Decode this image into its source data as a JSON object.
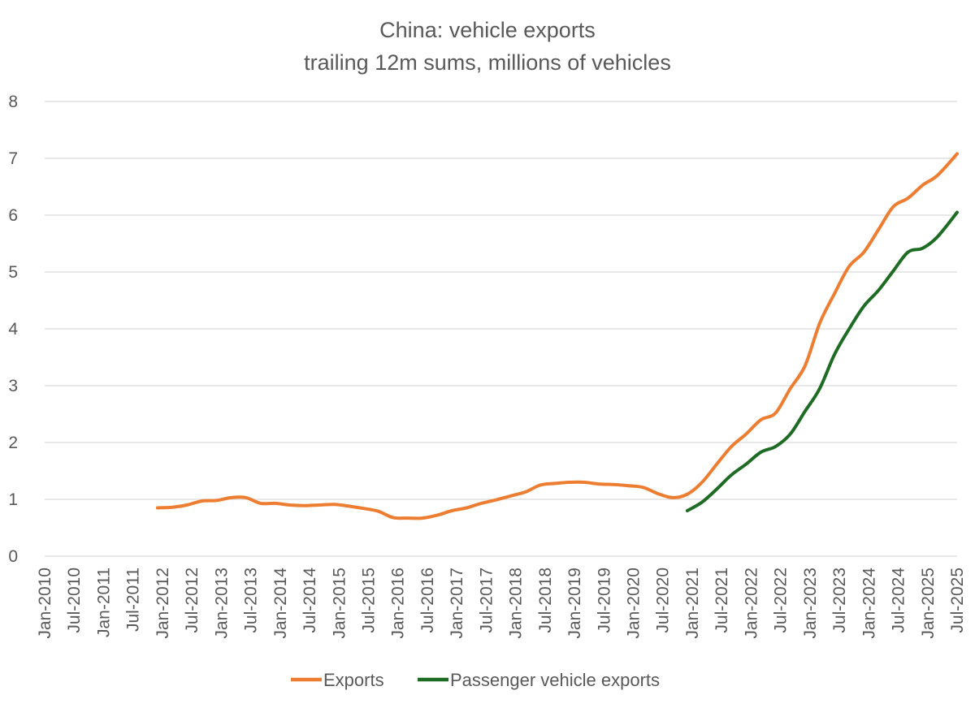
{
  "chart_data": {
    "type": "line",
    "title": "China: vehicle exports",
    "subtitle": "trailing 12m sums, millions of vehicles",
    "xlabel": "",
    "ylabel": "",
    "ylim": [
      0,
      8
    ],
    "yticks": [
      "0",
      "1",
      "2",
      "3",
      "4",
      "5",
      "6",
      "7",
      "8"
    ],
    "grid": "horizontal",
    "legend_position": "bottom",
    "xticks": [
      "Jan-2010",
      "Jul-2010",
      "Jan-2011",
      "Jul-2011",
      "Jan-2012",
      "Jul-2012",
      "Jan-2013",
      "Jul-2013",
      "Jan-2014",
      "Jul-2014",
      "Jan-2015",
      "Jul-2015",
      "Jan-2016",
      "Jul-2016",
      "Jan-2017",
      "Jul-2017",
      "Jan-2018",
      "Jul-2018",
      "Jan-2019",
      "Jul-2019",
      "Jan-2020",
      "Jul-2020",
      "Jan-2021",
      "Jul-2021",
      "Jan-2022",
      "Jul-2022",
      "Jan-2023",
      "Jul-2023",
      "Jan-2024",
      "Jul-2024",
      "Jan-2025",
      "Jul-2025"
    ],
    "series": [
      {
        "name": "Exports",
        "color": "#ED7D31",
        "points": [
          [
            "Dec-2011",
            0.85
          ],
          [
            "Mar-2012",
            0.86
          ],
          [
            "Jun-2012",
            0.9
          ],
          [
            "Sep-2012",
            0.97
          ],
          [
            "Dec-2012",
            0.98
          ],
          [
            "Mar-2013",
            1.03
          ],
          [
            "Jun-2013",
            1.03
          ],
          [
            "Sep-2013",
            0.93
          ],
          [
            "Dec-2013",
            0.93
          ],
          [
            "Mar-2014",
            0.9
          ],
          [
            "Jun-2014",
            0.89
          ],
          [
            "Sep-2014",
            0.9
          ],
          [
            "Dec-2014",
            0.91
          ],
          [
            "Mar-2015",
            0.88
          ],
          [
            "Jun-2015",
            0.84
          ],
          [
            "Sep-2015",
            0.79
          ],
          [
            "Dec-2015",
            0.68
          ],
          [
            "Mar-2016",
            0.67
          ],
          [
            "Jun-2016",
            0.67
          ],
          [
            "Sep-2016",
            0.72
          ],
          [
            "Dec-2016",
            0.8
          ],
          [
            "Mar-2017",
            0.85
          ],
          [
            "Jun-2017",
            0.93
          ],
          [
            "Sep-2017",
            0.99
          ],
          [
            "Dec-2017",
            1.06
          ],
          [
            "Mar-2018",
            1.13
          ],
          [
            "Jun-2018",
            1.25
          ],
          [
            "Sep-2018",
            1.28
          ],
          [
            "Dec-2018",
            1.3
          ],
          [
            "Mar-2019",
            1.3
          ],
          [
            "Jun-2019",
            1.27
          ],
          [
            "Sep-2019",
            1.26
          ],
          [
            "Dec-2019",
            1.24
          ],
          [
            "Mar-2020",
            1.21
          ],
          [
            "Jun-2020",
            1.1
          ],
          [
            "Sep-2020",
            1.03
          ],
          [
            "Dec-2020",
            1.09
          ],
          [
            "Mar-2021",
            1.3
          ],
          [
            "Jun-2021",
            1.62
          ],
          [
            "Sep-2021",
            1.93
          ],
          [
            "Dec-2021",
            2.15
          ],
          [
            "Mar-2022",
            2.4
          ],
          [
            "Jun-2022",
            2.52
          ],
          [
            "Sep-2022",
            2.95
          ],
          [
            "Dec-2022",
            3.35
          ],
          [
            "Mar-2023",
            4.1
          ],
          [
            "Jun-2023",
            4.62
          ],
          [
            "Sep-2023",
            5.1
          ],
          [
            "Dec-2023",
            5.35
          ],
          [
            "Mar-2024",
            5.75
          ],
          [
            "Jun-2024",
            6.15
          ],
          [
            "Sep-2024",
            6.3
          ],
          [
            "Dec-2024",
            6.53
          ],
          [
            "Mar-2025",
            6.7
          ],
          [
            "Jul-2025",
            7.08
          ]
        ]
      },
      {
        "name": "Passenger vehicle exports",
        "color": "#1E6B24",
        "points": [
          [
            "Dec-2020",
            0.8
          ],
          [
            "Mar-2021",
            0.95
          ],
          [
            "Jun-2021",
            1.18
          ],
          [
            "Sep-2021",
            1.43
          ],
          [
            "Dec-2021",
            1.62
          ],
          [
            "Mar-2022",
            1.83
          ],
          [
            "Jun-2022",
            1.93
          ],
          [
            "Sep-2022",
            2.15
          ],
          [
            "Dec-2022",
            2.55
          ],
          [
            "Mar-2023",
            2.95
          ],
          [
            "Jun-2023",
            3.55
          ],
          [
            "Sep-2023",
            4.0
          ],
          [
            "Dec-2023",
            4.4
          ],
          [
            "Mar-2024",
            4.68
          ],
          [
            "Jun-2024",
            5.02
          ],
          [
            "Sep-2024",
            5.35
          ],
          [
            "Dec-2024",
            5.42
          ],
          [
            "Mar-2025",
            5.62
          ],
          [
            "Jul-2025",
            6.05
          ]
        ]
      }
    ]
  }
}
